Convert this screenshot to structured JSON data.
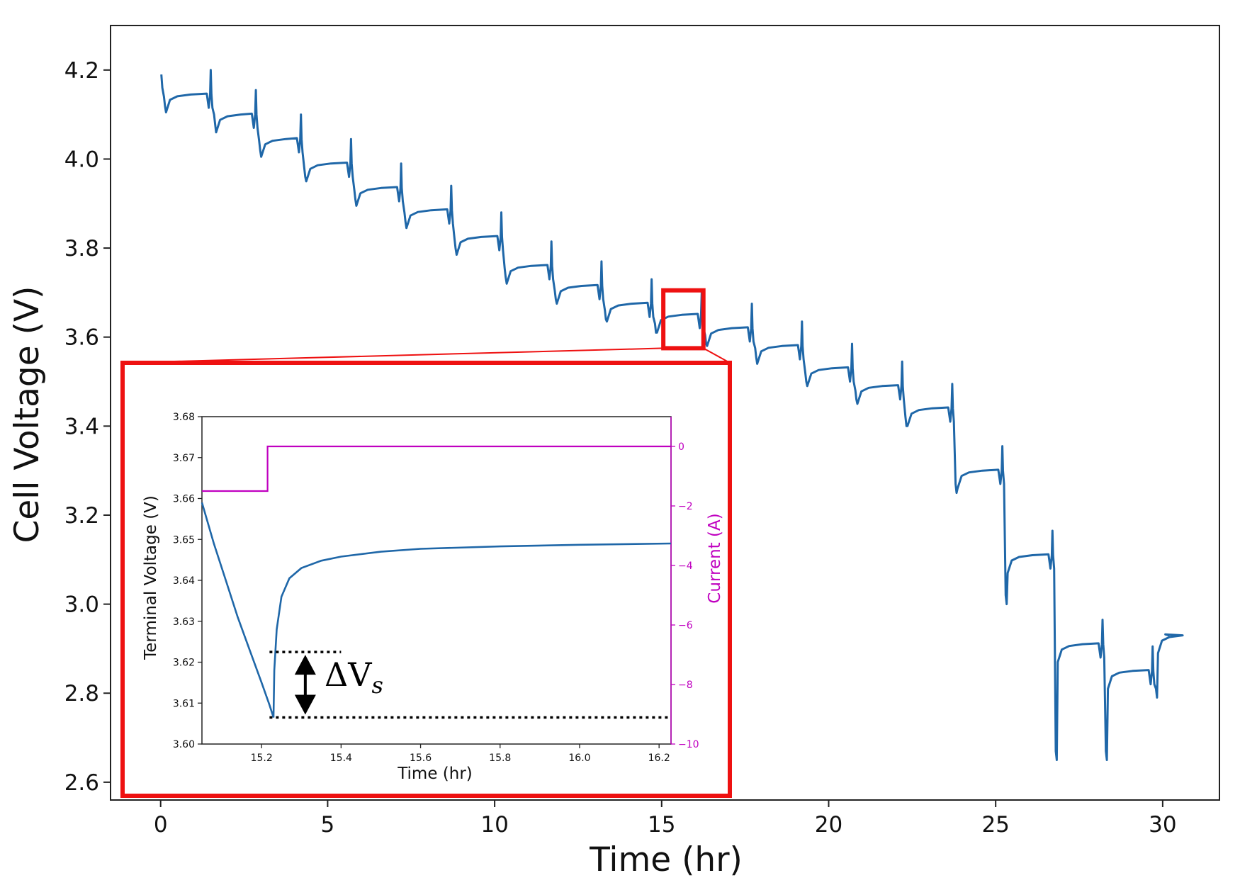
{
  "chart_data": [
    {
      "id": "main",
      "type": "line",
      "title": "",
      "xlabel": "Time (hr)",
      "ylabel": "Cell Voltage (V)",
      "xlim": [
        -1.5,
        31.7
      ],
      "ylim": [
        2.56,
        4.3
      ],
      "xticks": [
        0,
        5,
        10,
        15,
        20,
        25,
        30
      ],
      "xtick_labels": [
        "0",
        "5",
        "10",
        "15",
        "20",
        "25",
        "30"
      ],
      "yticks": [
        2.6,
        2.8,
        3.0,
        3.2,
        3.4,
        3.6,
        3.8,
        4.0,
        4.2
      ],
      "ytick_labels": [
        "2.6",
        "2.8",
        "3.0",
        "3.2",
        "3.4",
        "3.6",
        "3.8",
        "4.0",
        "4.2"
      ],
      "grid": false,
      "series": [
        {
          "name": "Cell Voltage",
          "color": "#1f67a8",
          "cycles": [
            {
              "t": 0.0,
              "v_start": 4.19,
              "v_drop": 4.12,
              "v_rest": 4.145
            },
            {
              "t": 1.5,
              "v_start": 4.145,
              "v_drop": 4.08,
              "v_rest": 4.1
            },
            {
              "t": 2.85,
              "v_start": 4.1,
              "v_drop": 4.02,
              "v_rest": 4.045
            },
            {
              "t": 4.2,
              "v_start": 4.045,
              "v_drop": 3.96,
              "v_rest": 3.99
            },
            {
              "t": 5.7,
              "v_start": 3.99,
              "v_drop": 3.91,
              "v_rest": 3.935
            },
            {
              "t": 7.2,
              "v_start": 3.935,
              "v_drop": 3.86,
              "v_rest": 3.885
            },
            {
              "t": 8.7,
              "v_start": 3.885,
              "v_drop": 3.8,
              "v_rest": 3.825
            },
            {
              "t": 10.2,
              "v_start": 3.825,
              "v_drop": 3.735,
              "v_rest": 3.76
            },
            {
              "t": 11.7,
              "v_start": 3.76,
              "v_drop": 3.685,
              "v_rest": 3.715
            },
            {
              "t": 13.2,
              "v_start": 3.715,
              "v_drop": 3.64,
              "v_rest": 3.675
            },
            {
              "t": 14.7,
              "v_start": 3.675,
              "v_drop": 3.61,
              "v_rest": 3.65
            },
            {
              "t": 16.2,
              "v_start": 3.65,
              "v_drop": 3.585,
              "v_rest": 3.62
            },
            {
              "t": 17.7,
              "v_start": 3.62,
              "v_drop": 3.555,
              "v_rest": 3.58
            },
            {
              "t": 19.2,
              "v_start": 3.58,
              "v_drop": 3.5,
              "v_rest": 3.53
            },
            {
              "t": 20.7,
              "v_start": 3.53,
              "v_drop": 3.46,
              "v_rest": 3.49
            },
            {
              "t": 22.2,
              "v_start": 3.49,
              "v_drop": 3.4,
              "v_rest": 3.44
            },
            {
              "t": 23.7,
              "v_start": 3.44,
              "v_drop": 3.25,
              "v_rest": 3.3
            },
            {
              "t": 25.2,
              "v_start": 3.3,
              "v_drop": 3.0,
              "v_rest": 3.11
            },
            {
              "t": 26.7,
              "v_start": 3.11,
              "v_drop": 2.65,
              "v_rest": 2.91
            },
            {
              "t": 28.2,
              "v_start": 2.91,
              "v_drop": 2.65,
              "v_rest": 2.85
            },
            {
              "t": 29.7,
              "v_start": 2.85,
              "v_drop": 2.79,
              "v_rest": 2.93
            }
          ],
          "end": {
            "t": 30.2,
            "v": 2.93
          }
        }
      ],
      "annotations": [
        {
          "type": "zoom-box",
          "x_range": [
            15.05,
            16.25
          ],
          "y_range": [
            3.575,
            3.705
          ],
          "color": "#ee1111"
        }
      ]
    },
    {
      "id": "inset",
      "type": "line",
      "xlabel": "Time (hr)",
      "ylabel": "Terminal Voltage (V)",
      "y2label": "Current (A)",
      "xlim": [
        15.05,
        16.23
      ],
      "ylim": [
        3.6,
        3.68
      ],
      "y2lim": [
        -10,
        1
      ],
      "xticks": [
        15.2,
        15.4,
        15.6,
        15.8,
        16.0,
        16.2
      ],
      "xtick_labels": [
        "15.2",
        "15.4",
        "15.6",
        "15.8",
        "16.0",
        "16.2"
      ],
      "yticks": [
        3.6,
        3.61,
        3.62,
        3.63,
        3.64,
        3.65,
        3.66,
        3.67,
        3.68
      ],
      "ytick_labels": [
        "3.60",
        "3.61",
        "3.62",
        "3.63",
        "3.64",
        "3.65",
        "3.66",
        "3.67",
        "3.68"
      ],
      "y2ticks": [
        0,
        -2,
        -4,
        -6,
        -8,
        -10
      ],
      "y2tick_labels": [
        "0",
        "−2",
        "−4",
        "−6",
        "−8",
        "−10"
      ],
      "series": [
        {
          "name": "Terminal Voltage",
          "axis": "left",
          "color": "#1f67a8",
          "points": [
            [
              15.05,
              3.659
            ],
            [
              15.08,
              3.649
            ],
            [
              15.11,
              3.64
            ],
            [
              15.14,
              3.631
            ],
            [
              15.17,
              3.623
            ],
            [
              15.2,
              3.615
            ],
            [
              15.22,
              3.6095
            ],
            [
              15.23,
              3.6065
            ],
            [
              15.232,
              3.618
            ],
            [
              15.238,
              3.628
            ],
            [
              15.25,
              3.636
            ],
            [
              15.27,
              3.6405
            ],
            [
              15.3,
              3.643
            ],
            [
              15.35,
              3.6448
            ],
            [
              15.4,
              3.6458
            ],
            [
              15.5,
              3.647
            ],
            [
              15.6,
              3.6477
            ],
            [
              15.8,
              3.6483
            ],
            [
              16.0,
              3.6487
            ],
            [
              16.23,
              3.649
            ]
          ]
        },
        {
          "name": "Current",
          "axis": "right",
          "color": "#c000c0",
          "points": [
            [
              15.05,
              -1.5
            ],
            [
              15.215,
              -1.5
            ],
            [
              15.215,
              0.0
            ],
            [
              16.23,
              0.0
            ]
          ]
        }
      ],
      "annotations": [
        {
          "type": "hline-dotted",
          "y": 3.6225,
          "x_range": [
            15.22,
            15.4
          ]
        },
        {
          "type": "hline-dotted",
          "y": 3.6065,
          "x_range": [
            15.22,
            16.23
          ]
        },
        {
          "type": "double-arrow",
          "x": 15.31,
          "y_range": [
            3.6065,
            3.6225
          ]
        },
        {
          "type": "text",
          "text": "ΔV",
          "subscript": "s"
        }
      ]
    }
  ]
}
